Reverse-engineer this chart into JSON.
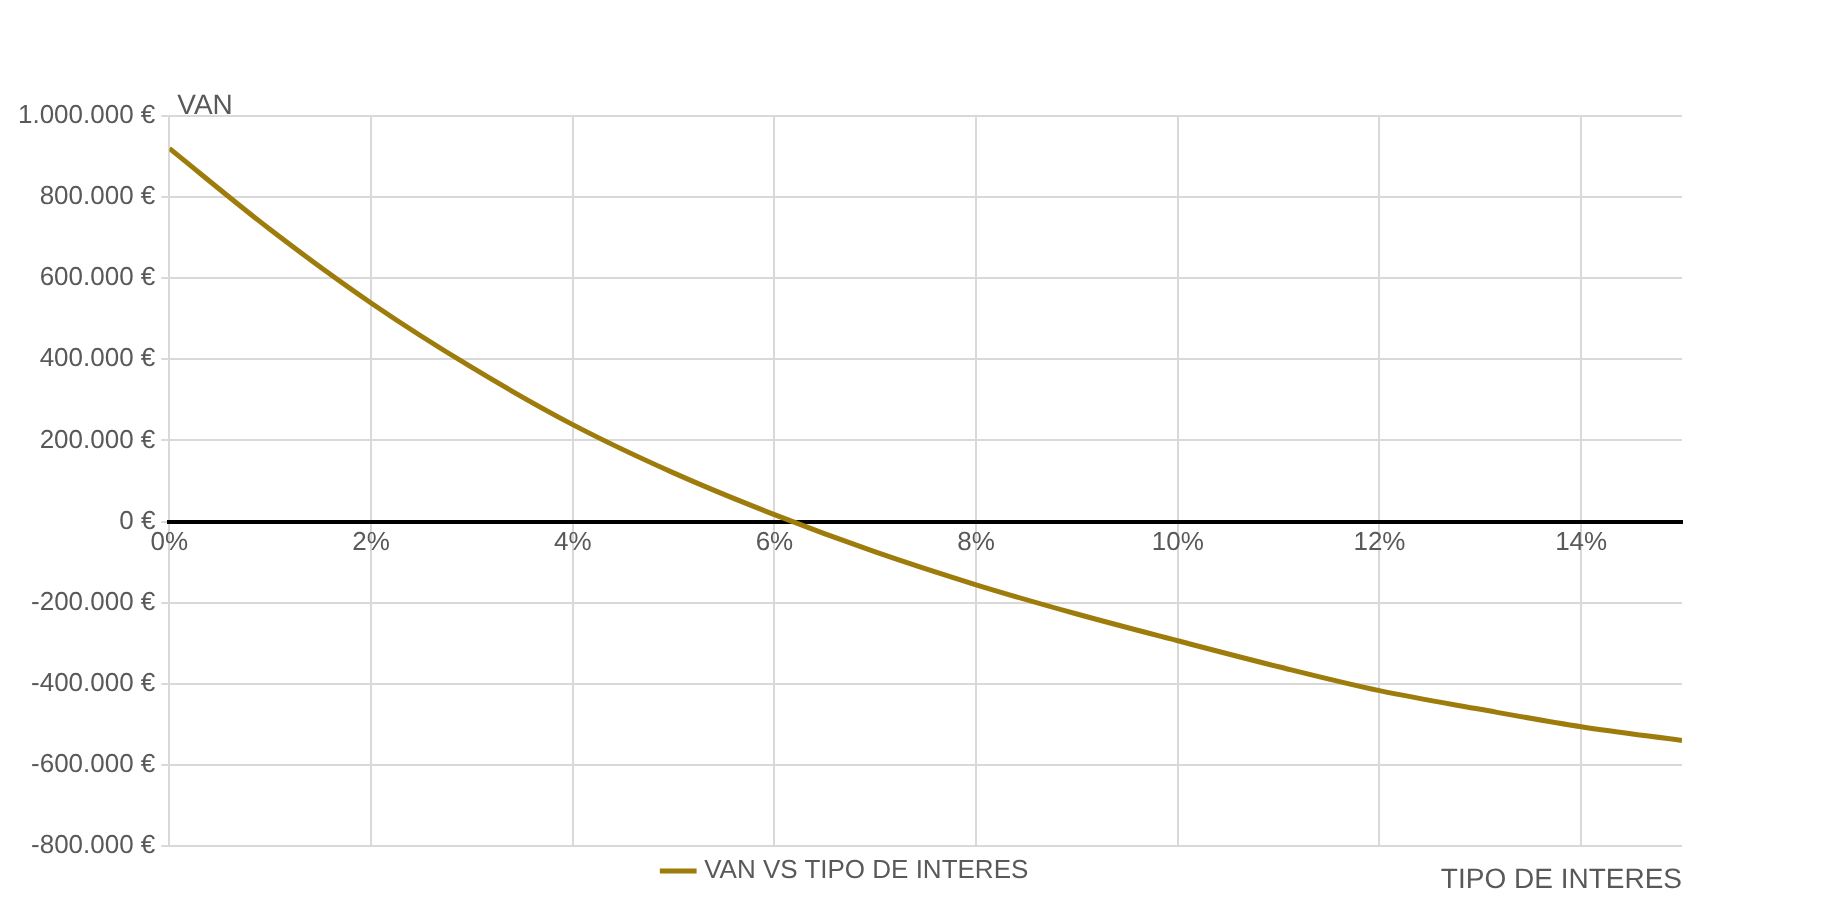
{
  "chart_data": {
    "type": "line",
    "xlabel": "TIPO DE INTERES",
    "ylabel": "VAN",
    "x": [
      0,
      1,
      2,
      3,
      4,
      5,
      6,
      7,
      8,
      9,
      10,
      11,
      12,
      13,
      14,
      15
    ],
    "series": [
      {
        "name": "VAN VS TIPO DE INTERES",
        "color": "#9e7c0c",
        "values": [
          920000,
          720000,
          539000,
          380000,
          239000,
          120000,
          17000,
          -75000,
          -156000,
          -228000,
          -294000,
          -358000,
          -417000,
          -463000,
          -506000,
          -540000
        ]
      }
    ],
    "xlim": [
      0,
      15
    ],
    "xticks": [
      {
        "value": 0,
        "label": "0%"
      },
      {
        "value": 2,
        "label": "2%"
      },
      {
        "value": 4,
        "label": "4%"
      },
      {
        "value": 6,
        "label": "6%"
      },
      {
        "value": 8,
        "label": "8%"
      },
      {
        "value": 10,
        "label": "10%"
      },
      {
        "value": 12,
        "label": "12%"
      },
      {
        "value": 14,
        "label": "14%"
      }
    ],
    "ylim": [
      -800000,
      1000000
    ],
    "yticks": [
      {
        "value": -800000,
        "label": "-800.000 €"
      },
      {
        "value": -600000,
        "label": "-600.000 €"
      },
      {
        "value": -400000,
        "label": "-400.000 €"
      },
      {
        "value": -200000,
        "label": "-200.000 €"
      },
      {
        "value": 0,
        "label": "0 €"
      },
      {
        "value": 200000,
        "label": "200.000 €"
      },
      {
        "value": 400000,
        "label": "400.000 €"
      },
      {
        "value": 600000,
        "label": "600.000 €"
      },
      {
        "value": 800000,
        "label": "800.000 €"
      },
      {
        "value": 1000000,
        "label": "1.000.000 €"
      }
    ],
    "grid": true,
    "legend": "bottom",
    "marker": "none",
    "line_style": "solid"
  }
}
